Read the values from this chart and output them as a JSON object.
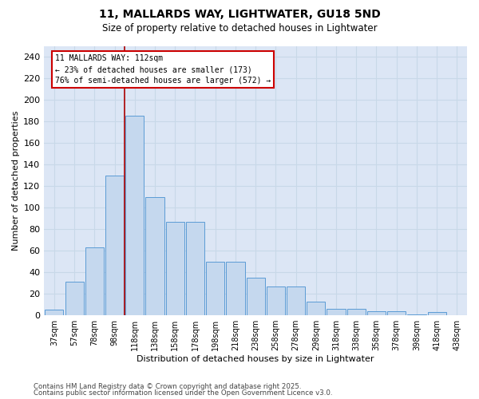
{
  "title1": "11, MALLARDS WAY, LIGHTWATER, GU18 5ND",
  "title2": "Size of property relative to detached houses in Lightwater",
  "xlabel": "Distribution of detached houses by size in Lightwater",
  "ylabel": "Number of detached properties",
  "categories": [
    "37sqm",
    "57sqm",
    "78sqm",
    "98sqm",
    "118sqm",
    "138sqm",
    "158sqm",
    "178sqm",
    "198sqm",
    "218sqm",
    "238sqm",
    "258sqm",
    "278sqm",
    "298sqm",
    "318sqm",
    "338sqm",
    "358sqm",
    "378sqm",
    "398sqm",
    "418sqm",
    "438sqm"
  ],
  "values": [
    5,
    31,
    63,
    130,
    185,
    110,
    87,
    87,
    50,
    50,
    35,
    27,
    27,
    13,
    6,
    6,
    4,
    4,
    1,
    3,
    0
  ],
  "bar_color": "#c5d8ee",
  "bar_edge_color": "#5b9bd5",
  "plot_bg_color": "#dce6f5",
  "fig_bg_color": "#ffffff",
  "grid_color": "#c8d8e8",
  "vline_color": "#aa0000",
  "vline_pos": 3.5,
  "annotation_text": "11 MALLARDS WAY: 112sqm\n← 23% of detached houses are smaller (173)\n76% of semi-detached houses are larger (572) →",
  "ann_box_edge_color": "#cc0000",
  "ylim": [
    0,
    250
  ],
  "yticks": [
    0,
    20,
    40,
    60,
    80,
    100,
    120,
    140,
    160,
    180,
    200,
    220,
    240
  ],
  "footer1": "Contains HM Land Registry data © Crown copyright and database right 2025.",
  "footer2": "Contains public sector information licensed under the Open Government Licence v3.0."
}
